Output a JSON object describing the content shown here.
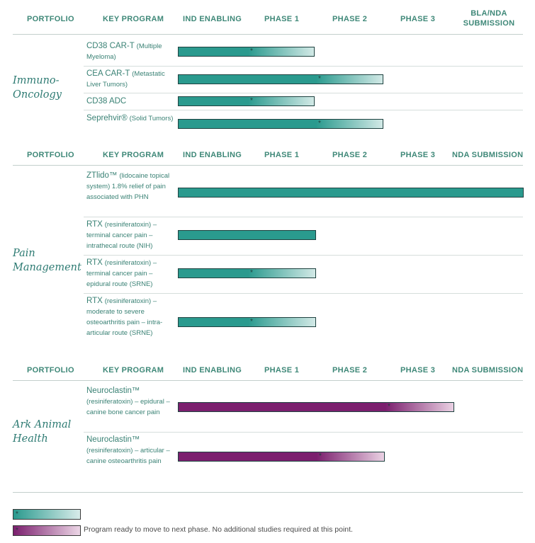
{
  "sections": [
    {
      "headers": [
        "PORTFOLIO",
        "KEY PROGRAM",
        "IND ENABLING",
        "PHASE 1",
        "PHASE 2",
        "PHASE 3",
        "BLA/NDA SUBMISSION"
      ],
      "portfolio": [
        "Immuno-",
        "Oncology"
      ],
      "programs": [
        {
          "name": "CD38 CAR-T",
          "desc": "(Multiple Myeloma)",
          "progress": 2,
          "ready": true
        },
        {
          "name": "CEA CAR-T",
          "desc": "(Metastatic Liver Tumors)",
          "progress": 3,
          "ready": true
        },
        {
          "name": "CD38 ADC",
          "desc": "",
          "progress": 2,
          "ready": true
        },
        {
          "name": "Seprehvir®",
          "desc": "(Solid Tumors)",
          "progress": 3,
          "ready": true
        }
      ]
    },
    {
      "headers": [
        "PORTFOLIO",
        "KEY PROGRAM",
        "IND ENABLING",
        "PHASE 1",
        "PHASE 2",
        "PHASE 3",
        "NDA SUBMISSION"
      ],
      "portfolio": [
        "Pain",
        "Management"
      ],
      "programs": [
        {
          "name": "ZTlido™",
          "desc": "(lidocaine topical system) 1.8% relief of pain associated with PHN",
          "progress": 5,
          "ready": false
        },
        {
          "name": "RTX",
          "desc": "(resiniferatoxin) – terminal cancer pain – intrathecal route (NIH)",
          "progress": 2,
          "ready": false
        },
        {
          "name": "RTX",
          "desc": "(resiniferatoxin) – terminal cancer pain – epidural route (SRNE)",
          "progress": 2,
          "ready": true
        },
        {
          "name": "RTX",
          "desc": "(resiniferatoxin) – moderate to severe osteoarthritis pain – intra-articular route (SRNE)",
          "progress": 2,
          "ready": true
        }
      ]
    },
    {
      "headers": [
        "PORTFOLIO",
        "KEY PROGRAM",
        "IND ENABLING",
        "PHASE 1",
        "PHASE 2",
        "PHASE 3",
        "NDA SUBMISSION"
      ],
      "portfolio": [
        "Ark Animal",
        "Health"
      ],
      "programs": [
        {
          "name": "Neuroclastin™",
          "desc": "(resiniferatoxin) – epidural – canine bone cancer pain",
          "progress": 4,
          "ready": true
        },
        {
          "name": "Neuroclastin™",
          "desc": "(resiniferatoxin) – articular – canine osteoarthritis pain",
          "progress": 3,
          "ready": true
        }
      ]
    }
  ],
  "legend": {
    "star": "*",
    "text": "Program ready to move to next phase. No additional studies required at this point."
  },
  "colors": {
    "teal": "#2a9a8e",
    "purple": "#7b1f6e",
    "header_text": "#3f8878"
  }
}
